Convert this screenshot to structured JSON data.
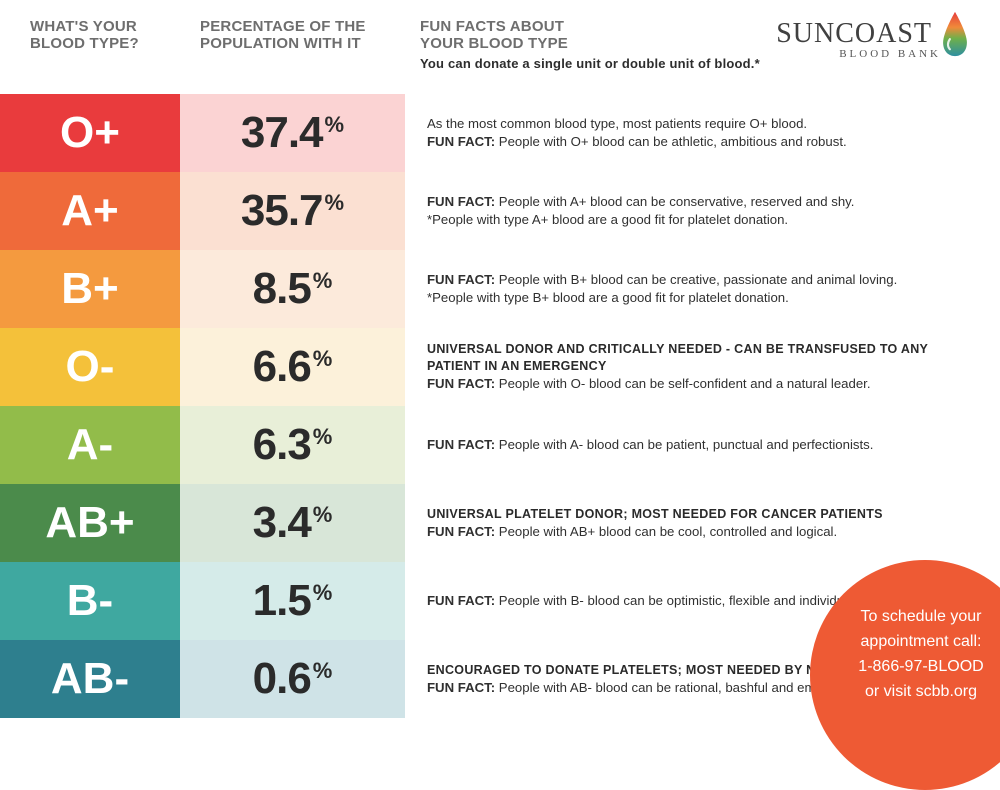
{
  "header": {
    "col1": "WHAT'S YOUR\nBLOOD TYPE?",
    "col2": "PERCENTAGE OF THE\nPOPULATION WITH IT",
    "col3": "FUN FACTS ABOUT\nYOUR BLOOD TYPE",
    "sub": "You can donate a single unit or double unit of blood.*"
  },
  "logo": {
    "brand_thin": "SUN",
    "brand_bold": "COAST",
    "tag": "BLOOD BANK"
  },
  "rows": [
    {
      "type": "O+",
      "pct": "37.4",
      "type_color": "#e93b3d",
      "pct_color": "#fbd3d3",
      "intro": "As the most common blood type, most patients require O+ blood.",
      "bold": "",
      "fun": "People with O+ blood can be athletic, ambitious and robust.",
      "note": ""
    },
    {
      "type": "A+",
      "pct": "35.7",
      "type_color": "#ef6a3a",
      "pct_color": "#fbe0d2",
      "intro": "",
      "bold": "",
      "fun": "People with A+ blood can be conservative, reserved and shy.",
      "note": "*People with type A+ blood are a good fit for platelet donation."
    },
    {
      "type": "B+",
      "pct": "8.5",
      "type_color": "#f49a3f",
      "pct_color": "#fceadb",
      "intro": "",
      "bold": "",
      "fun": "People with B+ blood can be creative, passionate and animal loving.",
      "note": "*People with type B+ blood are a good fit for platelet donation."
    },
    {
      "type": "O-",
      "pct": "6.6",
      "type_color": "#f4c13a",
      "pct_color": "#fcf1da",
      "intro": "",
      "bold": "UNIVERSAL DONOR AND CRITICALLY NEEDED - CAN BE TRANSFUSED TO ANY PATIENT IN AN EMERGENCY",
      "fun": "People with O- blood can be self-confident and a natural leader.",
      "note": ""
    },
    {
      "type": "A-",
      "pct": "6.3",
      "type_color": "#92bc4a",
      "pct_color": "#e8efd8",
      "intro": "",
      "bold": "",
      "fun": "People with A- blood can be patient, punctual and perfectionists.",
      "note": ""
    },
    {
      "type": "AB+",
      "pct": "3.4",
      "type_color": "#4b8b4b",
      "pct_color": "#d8e6d8",
      "intro": "",
      "bold": "UNIVERSAL PLATELET DONOR; MOST NEEDED FOR CANCER PATIENTS",
      "fun": "People with AB+ blood can be cool, controlled and logical.",
      "note": ""
    },
    {
      "type": "B-",
      "pct": "1.5",
      "type_color": "#3fa8a0",
      "pct_color": "#d5ebe9",
      "intro": "",
      "bold": "",
      "fun": "People with B- blood can be optimistic, flexible and individualistic.",
      "note": ""
    },
    {
      "type": "AB-",
      "pct": "0.6",
      "type_color": "#2e7f8e",
      "pct_color": "#cfe3e7",
      "intro": "",
      "bold": "ENCOURAGED TO DONATE PLATELETS; MOST NEEDED BY NEWBORNS IN CRISIS.",
      "fun": "People with AB- blood can be rational, bashful and empathetic.",
      "note": ""
    }
  ],
  "cta": {
    "text": "To schedule your appointment call:\n1-866-97-BLOOD\nor visit scbb.org",
    "color": "#ee5a34"
  }
}
